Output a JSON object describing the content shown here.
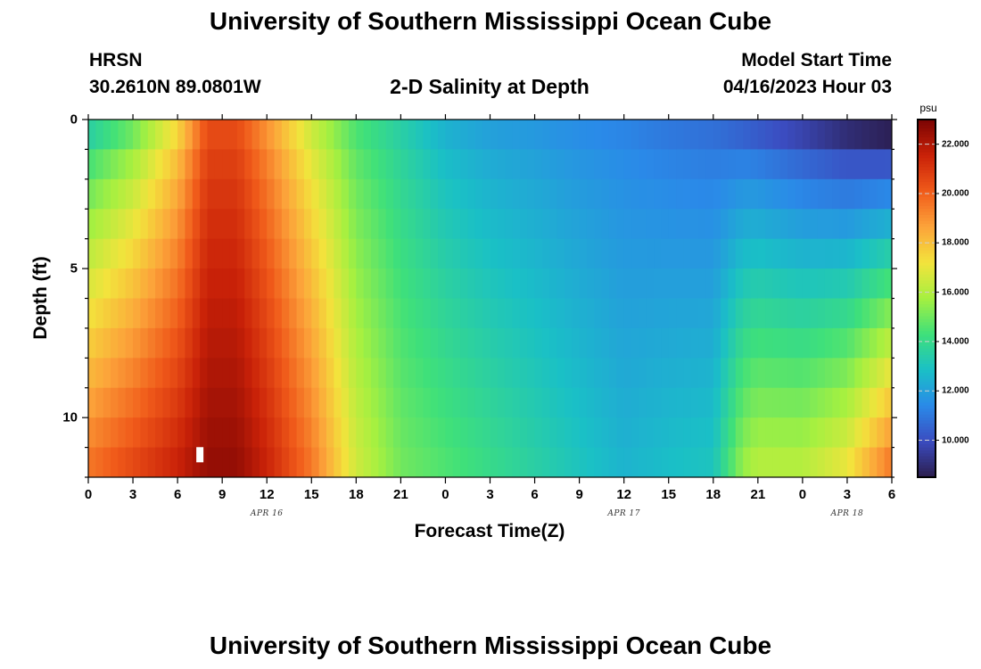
{
  "page": {
    "title": "University of Southern Mississippi Ocean Cube",
    "title_bottom": "University of Southern Mississippi Ocean Cube",
    "station": "HRSN",
    "coords": "30.2610N  89.0801W",
    "plot_title": "2-D Salinity at Depth",
    "model_start_label": "Model Start Time",
    "model_start_value": "04/16/2023 Hour 03"
  },
  "chart_data": {
    "type": "heatmap",
    "title": "2-D Salinity at Depth",
    "xlabel": "Forecast Time(Z)",
    "ylabel": "Depth (ft)",
    "x_hours_range": [
      0,
      54
    ],
    "x_ticks": [
      "0",
      "3",
      "6",
      "9",
      "12",
      "15",
      "18",
      "21",
      "0",
      "3",
      "6",
      "9",
      "12",
      "15",
      "18",
      "21",
      "0",
      "3",
      "6"
    ],
    "x_tick_hours": [
      0,
      3,
      6,
      9,
      12,
      15,
      18,
      21,
      24,
      27,
      30,
      33,
      36,
      39,
      42,
      45,
      48,
      51,
      54
    ],
    "date_labels": [
      {
        "text": "APR 16",
        "hour": 12
      },
      {
        "text": "APR 17",
        "hour": 36
      },
      {
        "text": "APR 18",
        "hour": 51
      }
    ],
    "y_ticks": [
      "0",
      "5",
      "10"
    ],
    "y_tick_values": [
      0,
      5,
      10
    ],
    "ylim": [
      0,
      12
    ],
    "y_reversed": true,
    "depth_levels": [
      0.5,
      1.5,
      2.5,
      3.5,
      4.5,
      5.5,
      6.5,
      7.5,
      8.5,
      9.5,
      10.5,
      11.5
    ],
    "colorbar": {
      "unit": "psu",
      "labels": [
        "22.000",
        "20.000",
        "18.000",
        "16.000",
        "14.000",
        "12.000",
        "10.000"
      ],
      "values": [
        22,
        20,
        18,
        16,
        14,
        12,
        10
      ],
      "range": [
        8.5,
        23
      ],
      "colors": [
        "#2b1d4d",
        "#3b4cc0",
        "#2a8ae8",
        "#1ac0c6",
        "#3fe07a",
        "#a6f040",
        "#f3e33c",
        "#fca33a",
        "#f05a1a",
        "#c92108",
        "#7a0403"
      ]
    },
    "profile_nodes": [
      {
        "hour": 0,
        "surface": 13.5,
        "bottom": 19.5
      },
      {
        "hour": 3,
        "surface": 15.0,
        "bottom": 20.5
      },
      {
        "hour": 6,
        "surface": 17.5,
        "bottom": 21.5
      },
      {
        "hour": 8,
        "surface": 20.5,
        "bottom": 22.5
      },
      {
        "hour": 10,
        "surface": 20.5,
        "bottom": 22.5
      },
      {
        "hour": 12,
        "surface": 19.0,
        "bottom": 21.5
      },
      {
        "hour": 15,
        "surface": 16.5,
        "bottom": 19.5
      },
      {
        "hour": 18,
        "surface": 14.5,
        "bottom": 16.5
      },
      {
        "hour": 21,
        "surface": 13.5,
        "bottom": 15.0
      },
      {
        "hour": 24,
        "surface": 12.5,
        "bottom": 14.5
      },
      {
        "hour": 27,
        "surface": 12.0,
        "bottom": 14.0
      },
      {
        "hour": 30,
        "surface": 11.8,
        "bottom": 13.5
      },
      {
        "hour": 33,
        "surface": 11.5,
        "bottom": 13.0
      },
      {
        "hour": 36,
        "surface": 11.3,
        "bottom": 12.5
      },
      {
        "hour": 39,
        "surface": 11.0,
        "bottom": 12.8
      },
      {
        "hour": 42,
        "surface": 10.8,
        "bottom": 13.0
      },
      {
        "hour": 44,
        "surface": 10.5,
        "bottom": 15.5
      },
      {
        "hour": 45,
        "surface": 10.3,
        "bottom": 16.0
      },
      {
        "hour": 48,
        "surface": 9.7,
        "bottom": 16.0
      },
      {
        "hour": 51,
        "surface": 9.0,
        "bottom": 17.0
      },
      {
        "hour": 54,
        "surface": 8.6,
        "bottom": 19.5
      }
    ],
    "missing_cell": {
      "hour": 7.5,
      "depth": 11.5
    }
  }
}
